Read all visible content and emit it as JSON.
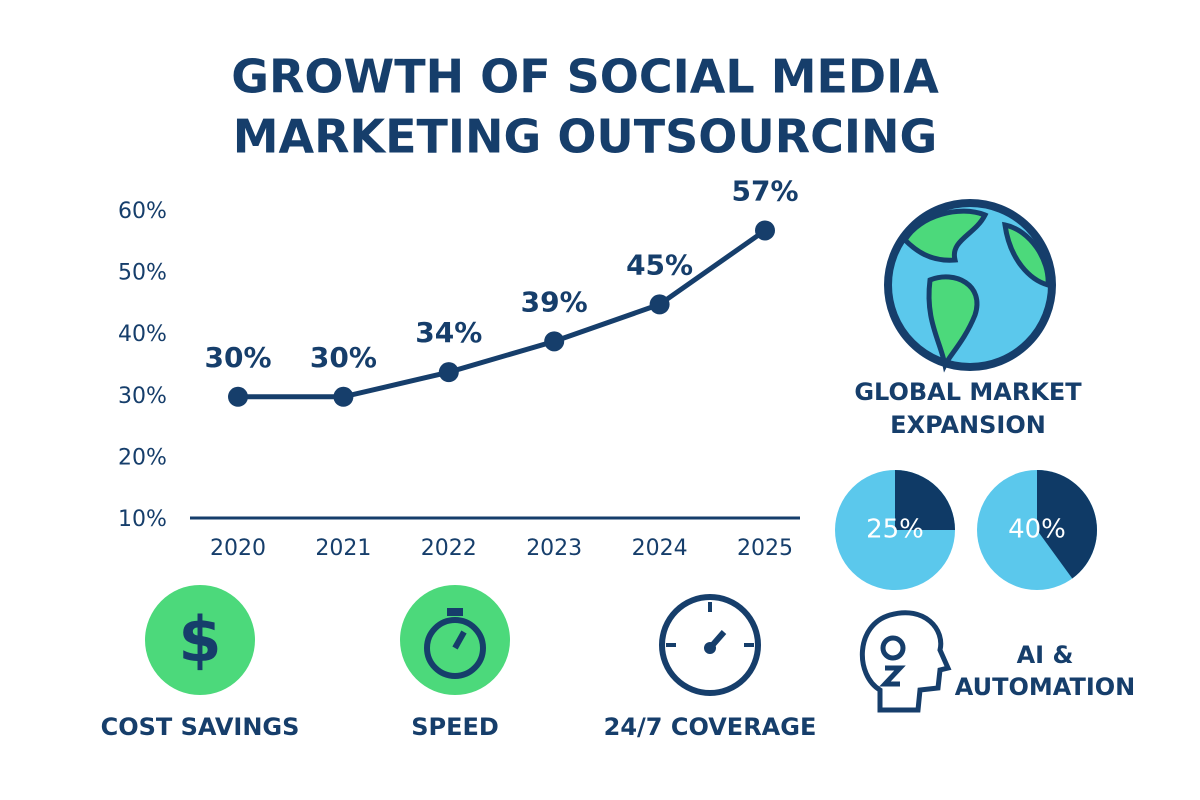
{
  "title": [
    "GROWTH OF SOCIAL MEDIA",
    "MARKETING OUTSOURCING"
  ],
  "highlights": {
    "global": [
      "GLOBAL MARKET",
      "EXPANSION"
    ],
    "cost": "COST SAVINGS",
    "speed": "SPEED",
    "coverage": "24/7 COVERAGE",
    "ai": [
      "AI &",
      "AUTOMATION"
    ]
  },
  "chart_data": [
    {
      "type": "line",
      "categories": [
        "2020",
        "2021",
        "2022",
        "2023",
        "2024",
        "2025"
      ],
      "values": [
        30,
        30,
        34,
        39,
        45,
        57
      ],
      "value_labels": [
        "30%",
        "30%",
        "34%",
        "39%",
        "45%",
        "57%"
      ],
      "color": "#163e6b",
      "ylim": [
        10,
        60
      ],
      "yticks": [
        {
          "value": 10,
          "label": "10%"
        },
        {
          "value": 20,
          "label": "20%"
        },
        {
          "value": 30,
          "label": "30%"
        },
        {
          "value": 40,
          "label": "40%"
        },
        {
          "value": 50,
          "label": "50%"
        },
        {
          "value": 60,
          "label": "60%"
        }
      ]
    },
    {
      "type": "pie",
      "values": [
        25
      ],
      "value_labels": [
        "25%"
      ],
      "color": "#0f3a66"
    },
    {
      "type": "pie",
      "values": [
        40
      ],
      "value_labels": [
        "40%"
      ],
      "color": "#0f3a66"
    }
  ]
}
